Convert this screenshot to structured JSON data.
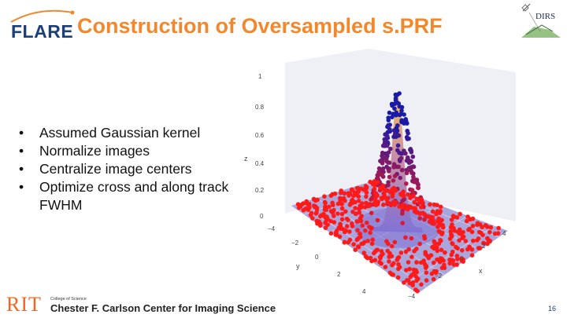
{
  "header": {
    "title": "Construction of Oversampled s.PRF",
    "left_logo_text": "FLARE",
    "right_logo_text": "DIRS"
  },
  "bullets": [
    {
      "marker": "•",
      "text": "Assumed Gaussian kernel"
    },
    {
      "marker": "•",
      "text": "Normalize images"
    },
    {
      "marker": "•",
      "text": "Centralize image centers"
    },
    {
      "marker": "•",
      "text": "Optimize cross and along track FWHM"
    }
  ],
  "plot": {
    "type": "3d-surface-scatter",
    "z_axis_label": "z",
    "z_ticks": [
      "0",
      "0.2",
      "0.4",
      "0.6",
      "0.8",
      "1"
    ],
    "x_axis_label": "x",
    "x_ticks": [
      "−4",
      "−2",
      "0",
      "2",
      "4"
    ],
    "y_axis_label": "y",
    "y_ticks": [
      "−4",
      "−2",
      "0",
      "2",
      "4"
    ],
    "colors": {
      "surface_low": "#7f6fd6",
      "surface_high": "#f3c44b",
      "points_low": "#ff1a1a",
      "points_high": "#1a1aa8",
      "pane": "#eef0f6"
    }
  },
  "footer": {
    "rit_logo": "RIT",
    "college": "College of Science",
    "center": "Chester F. Carlson Center for Imaging Science",
    "page_number": "16"
  }
}
